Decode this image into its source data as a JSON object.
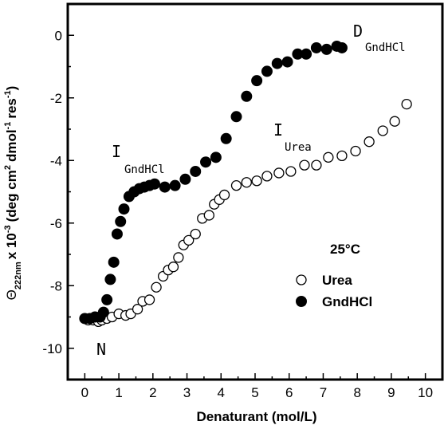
{
  "chart_data": {
    "type": "scatter",
    "xlabel": "Denaturant (mol/L)",
    "ylabel": {
      "theta": "Θ",
      "subscript": "222nm",
      "rest": "x 10",
      "exp": "-3",
      "units": "(deg cm",
      "units_exp1": "2",
      "units_mid": "dmol",
      "units_exp2": "-1",
      "units_end": "res",
      "units_exp3": "-1",
      "units_close": ")"
    },
    "xlim": [
      -0.5,
      10.5
    ],
    "ylim": [
      -11,
      1
    ],
    "x_ticks": [
      0,
      1,
      2,
      3,
      4,
      5,
      6,
      7,
      8,
      9,
      10
    ],
    "y_ticks": [
      0,
      -2,
      -4,
      -6,
      -8,
      -10
    ],
    "x_tick_labels": [
      "0",
      "1",
      "2",
      "3",
      "4",
      "5",
      "6",
      "7",
      "8",
      "9",
      "10"
    ],
    "y_tick_labels": [
      "0",
      "-2",
      "-4",
      "-6",
      "-8",
      "-10"
    ],
    "grid": false,
    "legend": {
      "title": "25°C",
      "position": "bottom-right",
      "items": [
        "Urea",
        "GndHCl"
      ]
    },
    "annotations": {
      "N": "N",
      "I_gnd_main": "I",
      "I_gnd_sub": "GndHCl",
      "I_urea_main": "I",
      "I_urea_sub": "Urea",
      "D_main": "D",
      "D_sub": "GndHCl"
    },
    "series": [
      {
        "name": "Urea",
        "marker": "open-circle",
        "x": [
          0.1,
          0.25,
          0.4,
          0.5,
          0.65,
          0.8,
          1.0,
          1.2,
          1.35,
          1.55,
          1.7,
          1.9,
          2.1,
          2.3,
          2.45,
          2.6,
          2.75,
          2.9,
          3.05,
          3.25,
          3.45,
          3.65,
          3.8,
          3.95,
          4.1,
          4.45,
          4.75,
          5.05,
          5.35,
          5.7,
          6.05,
          6.45,
          6.8,
          7.15,
          7.55,
          7.95,
          8.35,
          8.75,
          9.1,
          9.45
        ],
        "y": [
          -9.1,
          -9.1,
          -9.15,
          -9.1,
          -9.05,
          -9.0,
          -8.9,
          -8.95,
          -8.9,
          -8.75,
          -8.5,
          -8.45,
          -8.05,
          -7.7,
          -7.5,
          -7.4,
          -7.1,
          -6.7,
          -6.55,
          -6.35,
          -5.85,
          -5.75,
          -5.4,
          -5.25,
          -5.1,
          -4.8,
          -4.7,
          -4.65,
          -4.5,
          -4.4,
          -4.35,
          -4.15,
          -4.15,
          -3.9,
          -3.85,
          -3.7,
          -3.4,
          -3.05,
          -2.75,
          -2.2
        ]
      },
      {
        "name": "GndHCl",
        "marker": "filled-circle",
        "x": [
          0.0,
          0.15,
          0.3,
          0.45,
          0.55,
          0.65,
          0.75,
          0.85,
          0.95,
          1.05,
          1.15,
          1.3,
          1.45,
          1.6,
          1.75,
          1.9,
          2.05,
          2.35,
          2.65,
          2.95,
          3.25,
          3.55,
          3.85,
          4.15,
          4.45,
          4.75,
          5.05,
          5.35,
          5.65,
          5.95,
          6.25,
          6.5,
          6.8,
          7.1,
          7.4,
          7.55
        ],
        "y": [
          -9.05,
          -9.05,
          -9.0,
          -9.0,
          -8.85,
          -8.45,
          -7.8,
          -7.25,
          -6.35,
          -5.95,
          -5.55,
          -5.15,
          -5.0,
          -4.9,
          -4.85,
          -4.8,
          -4.75,
          -4.85,
          -4.8,
          -4.6,
          -4.35,
          -4.05,
          -3.9,
          -3.3,
          -2.6,
          -1.95,
          -1.45,
          -1.15,
          -0.9,
          -0.85,
          -0.6,
          -0.6,
          -0.4,
          -0.45,
          -0.35,
          -0.4
        ]
      }
    ]
  }
}
